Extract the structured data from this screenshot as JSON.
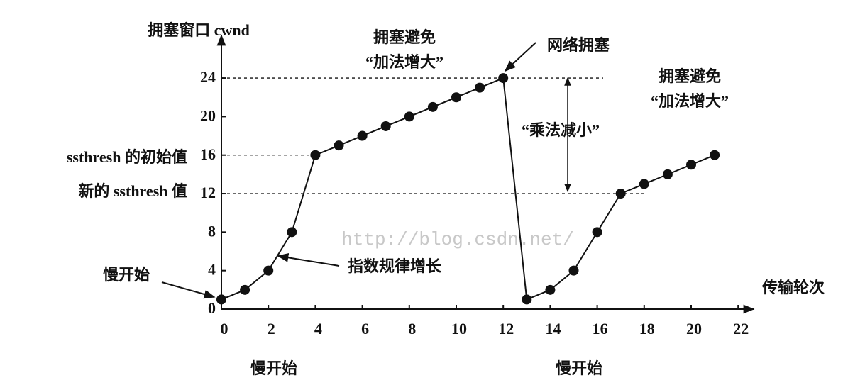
{
  "chart_data": {
    "type": "line",
    "ylabel": "拥塞窗口 cwnd",
    "xlabel": "传输轮次",
    "x": [
      0,
      1,
      2,
      3,
      4,
      5,
      6,
      7,
      8,
      9,
      10,
      11,
      12,
      13,
      14,
      15,
      16,
      17,
      18,
      19,
      20,
      21
    ],
    "series": [
      {
        "color": "#111111",
        "values": [
          1,
          2,
          4,
          8,
          16,
          17,
          18,
          19,
          20,
          21,
          22,
          23,
          24,
          1,
          2,
          4,
          8,
          12,
          13,
          14,
          15,
          16
        ]
      }
    ],
    "xlim": [
      0,
      23
    ],
    "xticks": [
      0,
      2,
      4,
      6,
      8,
      10,
      12,
      14,
      16,
      18,
      20,
      22
    ],
    "ylim": [
      0,
      28
    ],
    "yticks": [
      0,
      4,
      8,
      12,
      16,
      20,
      24
    ],
    "ref_lines": [
      24,
      16,
      12
    ],
    "annotations": [
      "拥塞避免",
      "“加法增大”",
      "网络拥塞",
      "拥塞避免",
      "“加法增大”",
      "“乘法减小”",
      "指数规律增长",
      "慢开始",
      "慢开始",
      "慢开始",
      "ssthresh 的初始值",
      "新的 ssthresh 值",
      "http://blog.csdn.net/"
    ]
  }
}
